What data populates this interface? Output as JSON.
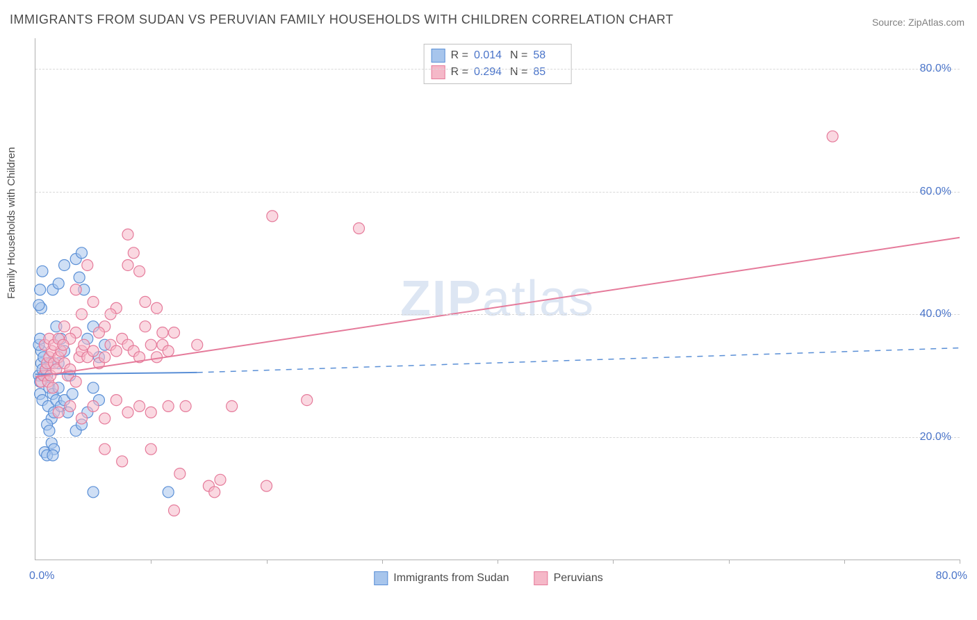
{
  "title": "IMMIGRANTS FROM SUDAN VS PERUVIAN FAMILY HOUSEHOLDS WITH CHILDREN CORRELATION CHART",
  "source": "Source: ZipAtlas.com",
  "y_axis_label": "Family Households with Children",
  "watermark_a": "ZIP",
  "watermark_b": "atlas",
  "x_origin": "0.0%",
  "x_max": "80.0%",
  "chart": {
    "type": "scatter-with-regression",
    "xlim": [
      0,
      80
    ],
    "ylim": [
      0,
      85
    ],
    "y_ticks": [
      20,
      40,
      60,
      80
    ],
    "y_tick_labels": [
      "20.0%",
      "40.0%",
      "60.0%",
      "80.0%"
    ],
    "x_tick_positions": [
      10,
      20,
      30,
      40,
      50,
      60,
      70,
      80
    ],
    "grid_color": "#d8d8d8",
    "axis_color": "#b0b0b0",
    "tick_label_color": "#4a74c9",
    "background": "#ffffff",
    "marker_radius": 8,
    "marker_opacity": 0.55,
    "series": [
      {
        "id": "sudan",
        "label": "Immigrants from Sudan",
        "r_value": "0.014",
        "n_value": "58",
        "fill": "#a7c5ec",
        "stroke": "#5a8fd6",
        "regression": {
          "x1": 0,
          "y1": 30.2,
          "x2": 14,
          "y2": 30.5,
          "dashed_x2": 80,
          "dashed_y2": 34.5,
          "width": 2
        },
        "points": [
          [
            0.3,
            30
          ],
          [
            0.5,
            32
          ],
          [
            0.4,
            29
          ],
          [
            0.6,
            31
          ],
          [
            0.5,
            34
          ],
          [
            0.4,
            27
          ],
          [
            0.8,
            30
          ],
          [
            0.3,
            35
          ],
          [
            0.7,
            33
          ],
          [
            0.4,
            36
          ],
          [
            0.5,
            41
          ],
          [
            0.3,
            41.5
          ],
          [
            0.6,
            26
          ],
          [
            1.0,
            30
          ],
          [
            1.2,
            28
          ],
          [
            1.3,
            32
          ],
          [
            1.1,
            25
          ],
          [
            1.5,
            27
          ],
          [
            1.4,
            23
          ],
          [
            1.6,
            24
          ],
          [
            1.8,
            26
          ],
          [
            2.0,
            28
          ],
          [
            2.2,
            25
          ],
          [
            1.0,
            22
          ],
          [
            1.2,
            21
          ],
          [
            1.4,
            19
          ],
          [
            1.6,
            18
          ],
          [
            0.8,
            17.5
          ],
          [
            1.0,
            17
          ],
          [
            1.5,
            17
          ],
          [
            2.5,
            26
          ],
          [
            2.8,
            24
          ],
          [
            3.0,
            30
          ],
          [
            3.2,
            27
          ],
          [
            3.5,
            21
          ],
          [
            2.0,
            32
          ],
          [
            2.5,
            34
          ],
          [
            2.2,
            36
          ],
          [
            1.8,
            38
          ],
          [
            1.5,
            44
          ],
          [
            2.0,
            45
          ],
          [
            2.5,
            48
          ],
          [
            3.5,
            49
          ],
          [
            4.0,
            50
          ],
          [
            3.8,
            46
          ],
          [
            4.2,
            44
          ],
          [
            4.5,
            36
          ],
          [
            5.0,
            38
          ],
          [
            5.5,
            33
          ],
          [
            6.0,
            35
          ],
          [
            5.0,
            28
          ],
          [
            5.5,
            26
          ],
          [
            4.5,
            24
          ],
          [
            4.0,
            22
          ],
          [
            5.0,
            11
          ],
          [
            11.5,
            11
          ],
          [
            0.6,
            47
          ],
          [
            0.4,
            44
          ]
        ]
      },
      {
        "id": "peruvians",
        "label": "Peruvians",
        "r_value": "0.294",
        "n_value": "85",
        "fill": "#f5b8c8",
        "stroke": "#e57a9a",
        "regression": {
          "x1": 0,
          "y1": 29.8,
          "x2": 80,
          "y2": 52.5,
          "dashed_x2": null,
          "dashed_y2": null,
          "width": 2
        },
        "points": [
          [
            0.5,
            29
          ],
          [
            0.7,
            30
          ],
          [
            0.9,
            31
          ],
          [
            1.1,
            29
          ],
          [
            1.3,
            30
          ],
          [
            1.5,
            28
          ],
          [
            1.0,
            32
          ],
          [
            1.2,
            33
          ],
          [
            1.4,
            34
          ],
          [
            1.6,
            32
          ],
          [
            1.8,
            31
          ],
          [
            2.0,
            33
          ],
          [
            2.2,
            34
          ],
          [
            2.5,
            32
          ],
          [
            2.8,
            30
          ],
          [
            3.0,
            31
          ],
          [
            3.5,
            29
          ],
          [
            3.8,
            33
          ],
          [
            4.0,
            34
          ],
          [
            4.2,
            35
          ],
          [
            4.5,
            33
          ],
          [
            5.0,
            34
          ],
          [
            5.5,
            32
          ],
          [
            6.0,
            33
          ],
          [
            6.5,
            35
          ],
          [
            7.0,
            34
          ],
          [
            7.5,
            36
          ],
          [
            8.0,
            35
          ],
          [
            8.5,
            34
          ],
          [
            9.0,
            33
          ],
          [
            9.5,
            38
          ],
          [
            10.0,
            35
          ],
          [
            10.5,
            33
          ],
          [
            11.0,
            35
          ],
          [
            11.5,
            34
          ],
          [
            12.0,
            37
          ],
          [
            4.0,
            40
          ],
          [
            5.0,
            42
          ],
          [
            6.0,
            38
          ],
          [
            7.0,
            41
          ],
          [
            8.0,
            48
          ],
          [
            8.5,
            50
          ],
          [
            9.0,
            47
          ],
          [
            9.5,
            42
          ],
          [
            10.5,
            41
          ],
          [
            11.0,
            37
          ],
          [
            5.5,
            37
          ],
          [
            6.5,
            40
          ],
          [
            3.5,
            37
          ],
          [
            3.0,
            36
          ],
          [
            2.5,
            38
          ],
          [
            2.0,
            24
          ],
          [
            3.0,
            25
          ],
          [
            4.0,
            23
          ],
          [
            5.0,
            25
          ],
          [
            6.0,
            23
          ],
          [
            7.0,
            26
          ],
          [
            8.0,
            24
          ],
          [
            9.0,
            25
          ],
          [
            10.0,
            24
          ],
          [
            6.0,
            18
          ],
          [
            7.5,
            16
          ],
          [
            12.5,
            14
          ],
          [
            11.5,
            25
          ],
          [
            13.0,
            25
          ],
          [
            14.0,
            35
          ],
          [
            15.0,
            12
          ],
          [
            15.5,
            11
          ],
          [
            16.0,
            13
          ],
          [
            17.0,
            25
          ],
          [
            20.0,
            12
          ],
          [
            20.5,
            56
          ],
          [
            23.5,
            26
          ],
          [
            28.0,
            54
          ],
          [
            12.0,
            8
          ],
          [
            10.0,
            18
          ],
          [
            3.5,
            44
          ],
          [
            4.5,
            48
          ],
          [
            8.0,
            53
          ],
          [
            69.0,
            69
          ],
          [
            0.8,
            35
          ],
          [
            1.2,
            36
          ],
          [
            1.6,
            35
          ],
          [
            2.0,
            36
          ],
          [
            2.4,
            35
          ]
        ]
      }
    ]
  },
  "legend_r_label": "R =",
  "legend_n_label": "N ="
}
